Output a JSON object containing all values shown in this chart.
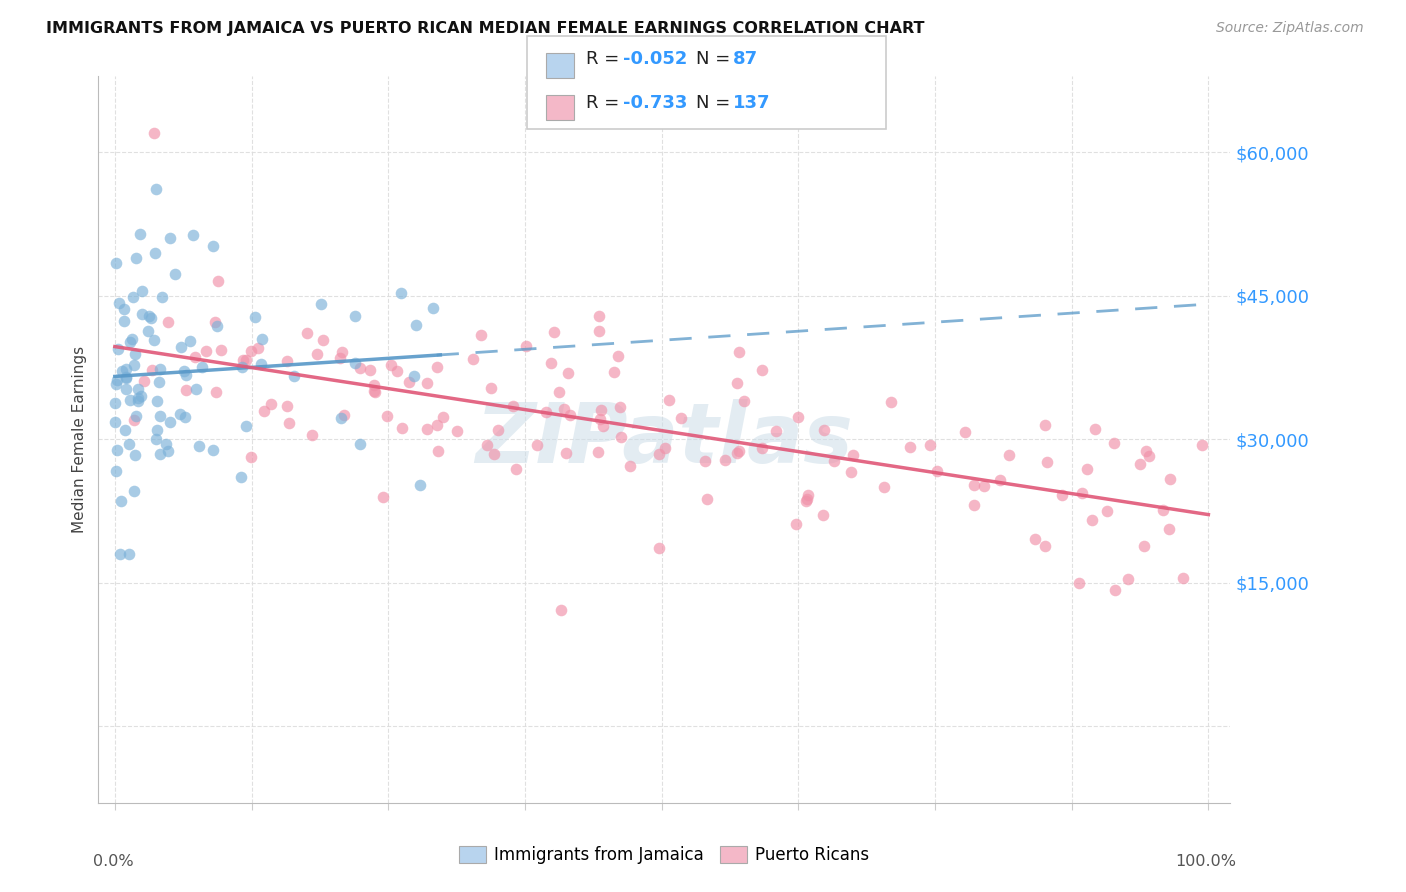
{
  "title": "IMMIGRANTS FROM JAMAICA VS PUERTO RICAN MEDIAN FEMALE EARNINGS CORRELATION CHART",
  "source": "Source: ZipAtlas.com",
  "ylabel": "Median Female Earnings",
  "ytick_values": [
    0,
    15000,
    30000,
    45000,
    60000
  ],
  "ytick_labels": [
    "",
    "$15,000",
    "$30,000",
    "$45,000",
    "$60,000"
  ],
  "scatter1_color": "#7ab0d8",
  "scatter2_color": "#f090a8",
  "line1_color": "#5898c8",
  "line2_color": "#e05878",
  "legend1_color": "#b8d4ee",
  "legend2_color": "#f4b8c8",
  "ytick_color": "#3399ff",
  "title_color": "#111111",
  "source_color": "#999999",
  "grid_color": "#dddddd",
  "background_color": "#ffffff",
  "watermark": "ZIPatlas",
  "watermark_color": "#ccdde8"
}
